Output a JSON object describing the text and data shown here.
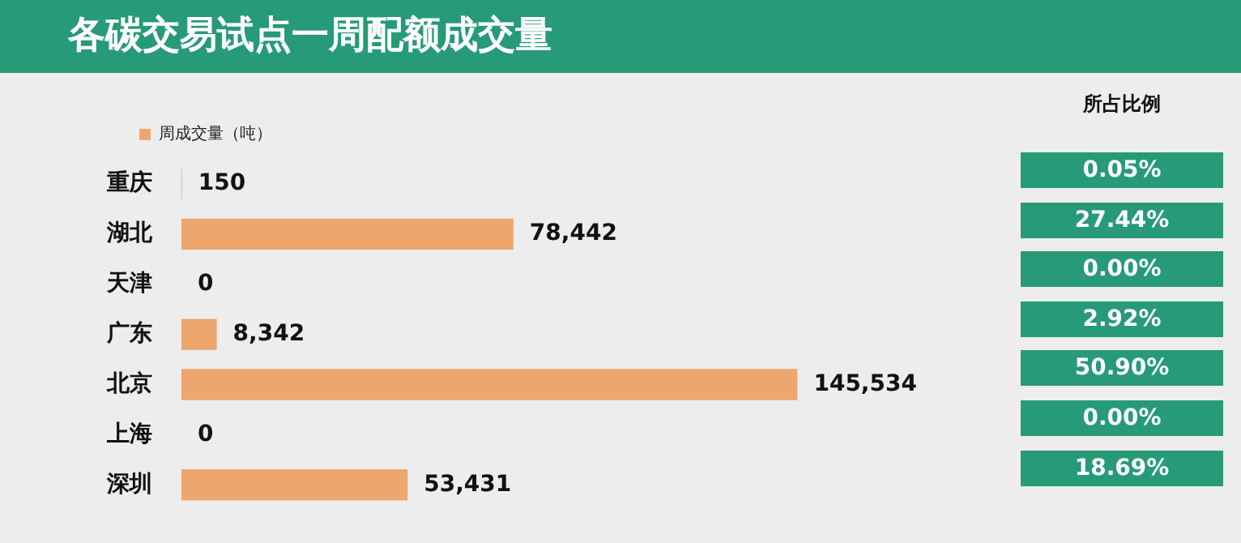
{
  "chart_data": [
    {
      "type": "bar",
      "title": "各碳交易试点一周配额成交量",
      "orientation": "horizontal",
      "categories": [
        "重庆",
        "湖北",
        "天津",
        "广东",
        "北京",
        "上海",
        "深圳"
      ],
      "series": [
        {
          "name": "周成交量（吨）",
          "color": "#eda66e",
          "values": [
            150,
            78442,
            0,
            8342,
            145534,
            0,
            53431
          ],
          "value_labels": [
            "150",
            "78,442",
            "0",
            "8,342",
            "145,534",
            "0",
            "53,431"
          ]
        }
      ],
      "legend": "top left",
      "tick_labels": "y"
    },
    {
      "type": "other",
      "title": "所占比例",
      "annotations": [
        "0.05%",
        "27.44%",
        "0.00%",
        "2.92%",
        "50.90%",
        "0.00%",
        "18.69%"
      ]
    }
  ]
}
